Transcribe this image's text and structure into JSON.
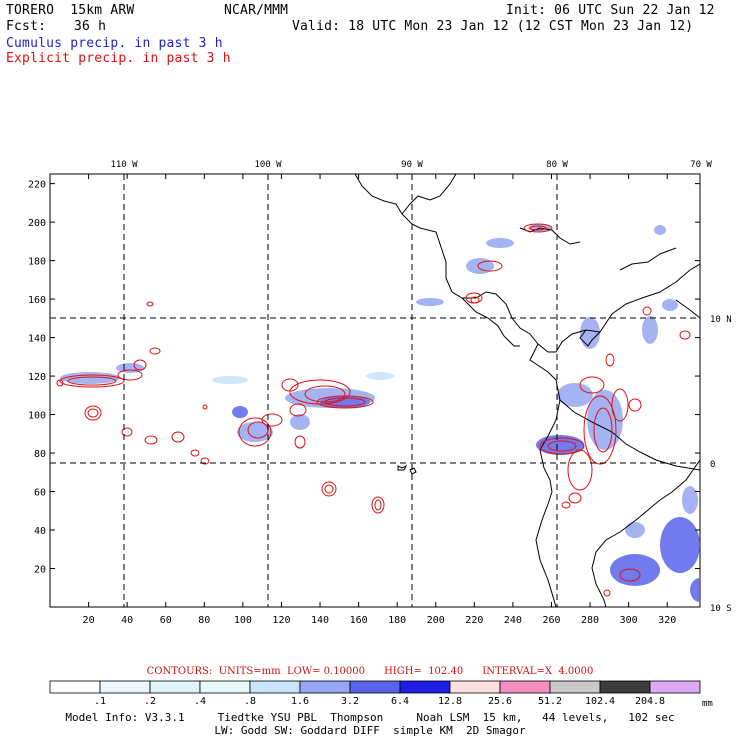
{
  "header": {
    "model_name": "TORERO  15km ARW",
    "org": "NCAR/MMM",
    "init": "Init: 06 UTC Sun 22 Jan 12",
    "fcst_label": "Fcst:",
    "fcst_value": "36 h",
    "valid": "Valid: 18 UTC Mon 23 Jan 12 (12 CST Mon 23 Jan 12)"
  },
  "legend": {
    "cumulus": "Cumulus precip. in past 3 h",
    "explicit": "Explicit precip. in past 3 h"
  },
  "map": {
    "lon_labels": [
      "110 W",
      "100 W",
      "90 W",
      "80 W",
      "70 W"
    ],
    "lat_labels": [
      "10 N",
      "0",
      "10 S"
    ],
    "x_ticks": [
      "20",
      "40",
      "60",
      "80",
      "100",
      "120",
      "140",
      "160",
      "180",
      "200",
      "220",
      "240",
      "260",
      "280",
      "300",
      "320"
    ],
    "y_ticks": [
      "20",
      "40",
      "60",
      "80",
      "100",
      "120",
      "140",
      "160",
      "180",
      "200",
      "220"
    ],
    "cumulus_color": "#3a3ae0",
    "explicit_color": "#e01010"
  },
  "contours_info": "CONTOURS:  UNITS=mm  LOW= 0.10000      HIGH=  102.40      INTERVAL=X  4.0000",
  "colorbar": {
    "labels": [
      ".1",
      ".2",
      ".4",
      ".8",
      "1.6",
      "3.2",
      "6.4",
      "12.8",
      "25.6",
      "51.2",
      "102.4",
      "204.8"
    ],
    "unit": "mm",
    "colors": [
      "#ffffff",
      "#f0f8ff",
      "#dff3fb",
      "#e8fbfb",
      "#c6e4fa",
      "#96a6f0",
      "#5a64ea",
      "#1e1ee6",
      "#fce0e0",
      "#f58fc0",
      "#c8c8c8",
      "#3c3c3c",
      "#ddaaf5"
    ]
  },
  "model_info": {
    "line1": "Model Info: V3.3.1     Tiedtke YSU PBL  Thompson     Noah LSM  15 km,   44 levels,   102 sec",
    "line2": "LW: Godd SW: Goddard DIFF  simple KM  2D Smagor"
  }
}
